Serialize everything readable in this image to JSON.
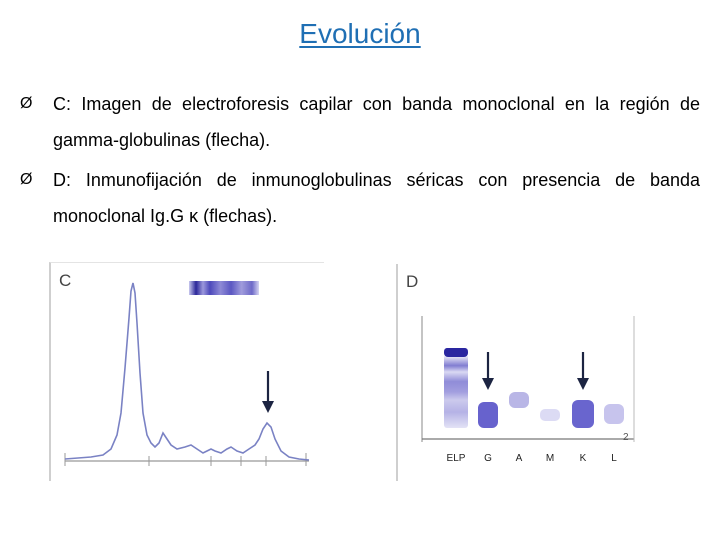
{
  "title": "Evolución",
  "bullets": [
    {
      "marker": "Ø",
      "text": "C: Imagen de electroforesis capilar con banda monoclonal en la región de gamma-globulinas (flecha)."
    },
    {
      "marker": "Ø",
      "text": "D: Inmunofijación de inmunoglobulinas séricas con presencia de banda monoclonal Ig.G κ (flechas)."
    }
  ],
  "panel_c": {
    "label": "C"
  },
  "panel_d": {
    "label": "D",
    "lanes": [
      "ELP",
      "G",
      "A",
      "M",
      "K",
      "L"
    ],
    "corner_mark": "2"
  },
  "colors": {
    "title": "#1f6fb4",
    "band": "#3d37c4",
    "trace": "#7f86c8"
  }
}
